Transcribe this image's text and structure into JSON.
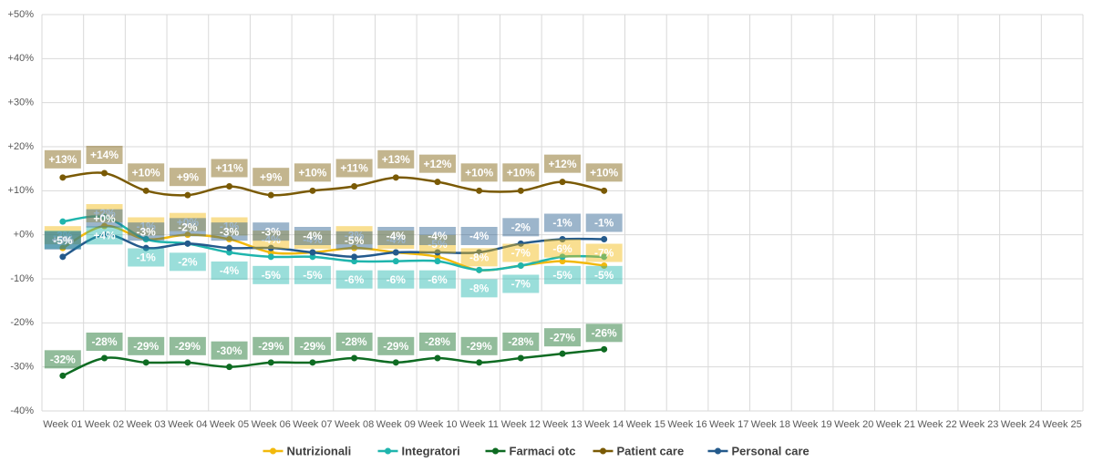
{
  "chart_data": {
    "type": "line",
    "categories": [
      "Week 01",
      "Week 02",
      "Week 03",
      "Week 04",
      "Week 05",
      "Week 06",
      "Week 07",
      "Week 08",
      "Week 09",
      "Week 10",
      "Week 11",
      "Week 12",
      "Week 13",
      "Week 14",
      "Week 15",
      "Week 16",
      "Week 17",
      "Week 18",
      "Week 19",
      "Week 20",
      "Week 21",
      "Week 22",
      "Week 23",
      "Week 24",
      "Week 25"
    ],
    "series": [
      {
        "name": "Nutrizionali",
        "color": "#f2b90c",
        "values": [
          -3,
          2,
          -1,
          0,
          -1,
          -4,
          -4,
          -3,
          -4,
          -5,
          -8,
          -7,
          -6,
          -7,
          null,
          null,
          null,
          null,
          null,
          null,
          null,
          null,
          null,
          null,
          null
        ],
        "value_labels": [
          "-3%",
          "+2%",
          "-1%",
          "+0%",
          "-1%",
          "-4%",
          "-4%",
          "-3%",
          "-4%",
          "-5%",
          "-8%",
          "-7%",
          "-6%",
          "-7%",
          null,
          null,
          null,
          null,
          null,
          null,
          null,
          null,
          null,
          null,
          null
        ]
      },
      {
        "name": "Integratori",
        "color": "#1fb5ad",
        "values": [
          3,
          4,
          -1,
          -2,
          -4,
          -5,
          -5,
          -6,
          -6,
          -6,
          -8,
          -7,
          -5,
          -5,
          null,
          null,
          null,
          null,
          null,
          null,
          null,
          null,
          null,
          null,
          null
        ],
        "value_labels": [
          "+3%",
          "+4%",
          "-1%",
          "-2%",
          "-4%",
          "-5%",
          "-5%",
          "-6%",
          "-6%",
          "-6%",
          "-8%",
          "-7%",
          "-5%",
          "-5%",
          null,
          null,
          null,
          null,
          null,
          null,
          null,
          null,
          null,
          null,
          null
        ]
      },
      {
        "name": "Farmaci otc",
        "color": "#0e6b22",
        "values": [
          -32,
          -28,
          -29,
          -29,
          -30,
          -29,
          -29,
          -28,
          -29,
          -28,
          -29,
          -28,
          -27,
          -26,
          null,
          null,
          null,
          null,
          null,
          null,
          null,
          null,
          null,
          null,
          null
        ],
        "value_labels": [
          "-32%",
          "-28%",
          "-29%",
          "-29%",
          "-30%",
          "-29%",
          "-29%",
          "-28%",
          "-29%",
          "-28%",
          "-29%",
          "-28%",
          "-27%",
          "-26%",
          null,
          null,
          null,
          null,
          null,
          null,
          null,
          null,
          null,
          null,
          null
        ]
      },
      {
        "name": "Patient care",
        "color": "#7a5a05",
        "values": [
          13,
          14,
          10,
          9,
          11,
          9,
          10,
          11,
          13,
          12,
          10,
          10,
          12,
          10,
          null,
          null,
          null,
          null,
          null,
          null,
          null,
          null,
          null,
          null,
          null
        ],
        "value_labels": [
          "+13%",
          "+14%",
          "+10%",
          "+9%",
          "+11%",
          "+9%",
          "+10%",
          "+11%",
          "+13%",
          "+12%",
          "+10%",
          "+10%",
          "+12%",
          "+10%",
          null,
          null,
          null,
          null,
          null,
          null,
          null,
          null,
          null,
          null,
          null
        ]
      },
      {
        "name": "Personal care",
        "color": "#245a8c",
        "values": [
          -5,
          0,
          -3,
          -2,
          -3,
          -3,
          -4,
          -5,
          -4,
          -4,
          -4,
          -2,
          -1,
          -1,
          null,
          null,
          null,
          null,
          null,
          null,
          null,
          null,
          null,
          null,
          null
        ],
        "value_labels": [
          "-5%",
          "+0%",
          "-3%",
          "-2%",
          "-3%",
          "-3%",
          "-4%",
          "-5%",
          "-4%",
          "-4%",
          "-4%",
          "-2%",
          "-1%",
          "-1%",
          null,
          null,
          null,
          null,
          null,
          null,
          null,
          null,
          null,
          null,
          null
        ]
      }
    ],
    "ylim": [
      -40,
      50
    ],
    "yticks": [
      {
        "value": -40,
        "label": "-40%"
      },
      {
        "value": -30,
        "label": "-30%"
      },
      {
        "value": -20,
        "label": "-20%"
      },
      {
        "value": -10,
        "label": "-10%"
      },
      {
        "value": 0,
        "label": "+0%"
      },
      {
        "value": 10,
        "label": "+10%"
      },
      {
        "value": 20,
        "label": "+20%"
      },
      {
        "value": 30,
        "label": "+30%"
      },
      {
        "value": 40,
        "label": "+40%"
      },
      {
        "value": 50,
        "label": "+50%"
      }
    ],
    "grid": true,
    "legend": "bottom"
  }
}
